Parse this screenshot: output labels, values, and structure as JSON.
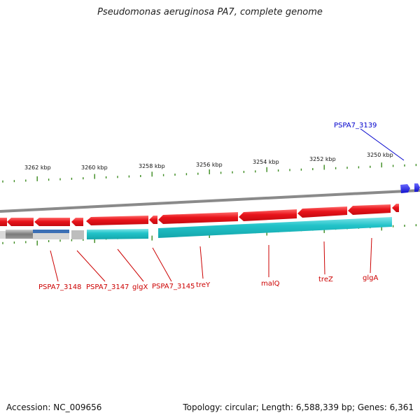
{
  "header": {
    "title": "Pseudomonas aeruginosa PA7, complete genome"
  },
  "footer": {
    "accession": "Accession: NC_009656",
    "summary": "Topology: circular; Length: 6,588,339 bp; Genes: 6,361"
  },
  "colors": {
    "forward_gene": "#e8141b",
    "rna_track": "#22c3c9",
    "highlight_gene": "#1a1aee",
    "tick": "#3a8a1e",
    "backbone": "#8a8a8a",
    "label_red": "#cc0000",
    "label_blue": "#0000cc"
  },
  "ticks": {
    "labels": [
      "3262 kbp",
      "3260 kbp",
      "3258 kbp",
      "3256 kbp",
      "3254 kbp",
      "3252 kbp",
      "3250 kbp"
    ]
  },
  "gene_labels": [
    {
      "name": "PSPA7_3148",
      "color": "red"
    },
    {
      "name": "PSPA7_3147",
      "color": "red"
    },
    {
      "name": "glgX",
      "color": "red"
    },
    {
      "name": "PSPA7_3145",
      "color": "red"
    },
    {
      "name": "treY",
      "color": "red"
    },
    {
      "name": "malQ",
      "color": "red"
    },
    {
      "name": "treZ",
      "color": "red"
    },
    {
      "name": "glgA",
      "color": "red"
    },
    {
      "name": "PSPA7_3139",
      "color": "blue"
    }
  ]
}
